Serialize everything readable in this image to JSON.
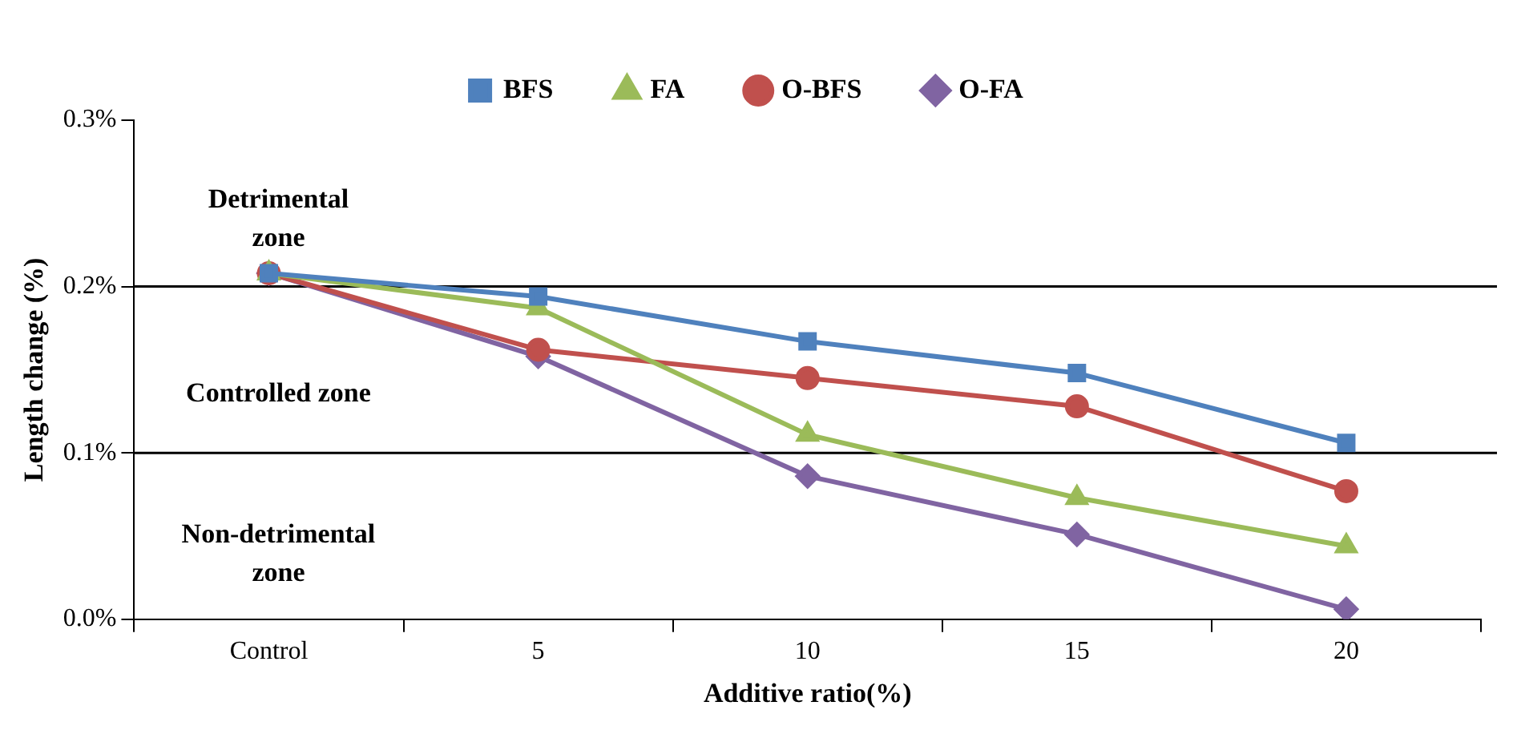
{
  "chart_data": {
    "type": "line",
    "xlabel": "Additive ratio(%)",
    "ylabel": "Length change (%)",
    "categories": [
      "Control",
      "5",
      "10",
      "15",
      "20"
    ],
    "series": [
      {
        "name": "BFS",
        "color": "#4f81bd",
        "marker": "square",
        "values": [
          0.208,
          0.194,
          0.167,
          0.148,
          0.106
        ]
      },
      {
        "name": "FA",
        "color": "#9bbb59",
        "marker": "triangle",
        "values": [
          0.208,
          0.187,
          0.111,
          0.073,
          0.044
        ]
      },
      {
        "name": "O-BFS",
        "color": "#c0504d",
        "marker": "circle",
        "values": [
          0.208,
          0.162,
          0.145,
          0.128,
          0.077
        ]
      },
      {
        "name": "O-FA",
        "color": "#8064a2",
        "marker": "diamond",
        "values": [
          0.208,
          0.158,
          0.086,
          0.051,
          0.006
        ]
      }
    ],
    "ylim": [
      0,
      0.3
    ],
    "yticks": [
      {
        "value": 0,
        "label": "0.0%"
      },
      {
        "value": 0.1,
        "label": "0.1%"
      },
      {
        "value": 0.2,
        "label": "0.2%"
      },
      {
        "value": 0.3,
        "label": "0.3%"
      }
    ],
    "ref_lines": [
      {
        "axis": "y",
        "value": 0.2,
        "color": "#000000"
      },
      {
        "axis": "y",
        "value": 0.1,
        "color": "#000000"
      }
    ],
    "annotations": [
      "Detrimental zone",
      "Controlled zone",
      "Non-detrimental zone"
    ],
    "grid": false,
    "legend": "top",
    "line_style": "solid"
  }
}
